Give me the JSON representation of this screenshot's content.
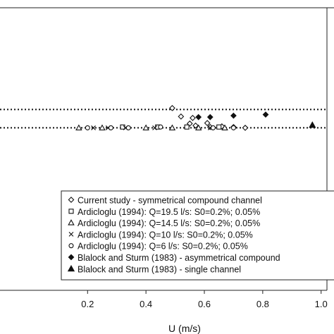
{
  "chart_data": {
    "type": "scatter",
    "xlabel": "U (m/s)",
    "ylabel": "",
    "title": "",
    "xlim": [
      -0.1,
      1.02
    ],
    "ylim": [
      0,
      1
    ],
    "x_ticks": [
      "0.2",
      "0.4",
      "0.6",
      "0.8",
      "1.0"
    ],
    "x_tick_values": [
      0.2,
      0.4,
      0.6,
      0.8,
      1.0
    ],
    "legend_position": "bottom-right",
    "reference_lines": [
      {
        "style": "dotted",
        "y": 0.64
      },
      {
        "style": "dotted",
        "y": 0.575
      }
    ],
    "series": [
      {
        "name": "Current study - symmetrical compound channel",
        "marker": "diamond-open",
        "points": [
          [
            0.49,
            0.645
          ],
          [
            0.52,
            0.615
          ],
          [
            0.56,
            0.61
          ],
          [
            0.55,
            0.59
          ],
          [
            0.57,
            0.583
          ],
          [
            0.61,
            0.592
          ],
          [
            0.62,
            0.578
          ],
          [
            0.66,
            0.58
          ],
          [
            0.7,
            0.578
          ],
          [
            0.74,
            0.575
          ]
        ]
      },
      {
        "name": "Ardicloglu (1994): Q=19.5 l/s: S0=0.2%; 0.05%",
        "marker": "square-open",
        "points": [
          [
            0.32,
            0.578
          ],
          [
            0.44,
            0.578
          ],
          [
            0.54,
            0.578
          ],
          [
            0.65,
            0.578
          ]
        ]
      },
      {
        "name": "Ardicloglu (1994): Q=14.5 l/s: S0=0.2%; 0.05%",
        "marker": "triangle-open",
        "points": [
          [
            0.17,
            0.575
          ],
          [
            0.25,
            0.575
          ],
          [
            0.4,
            0.575
          ],
          [
            0.49,
            0.575
          ],
          [
            0.58,
            0.575
          ],
          [
            0.67,
            0.575
          ]
        ]
      },
      {
        "name": "Ardicloglu (1994): Q=10 l/s: S0=0.2%; 0.05%",
        "marker": "x",
        "points": [
          [
            0.22,
            0.575
          ],
          [
            0.27,
            0.575
          ],
          [
            0.33,
            0.575
          ],
          [
            0.43,
            0.575
          ],
          [
            0.62,
            0.575
          ]
        ]
      },
      {
        "name": "Ardicloglu (1994): Q=6 l/s: S0=0.2%; 0.05%",
        "marker": "circle-open",
        "points": [
          [
            0.2,
            0.575
          ],
          [
            0.28,
            0.575
          ],
          [
            0.34,
            0.575
          ],
          [
            0.45,
            0.578
          ],
          [
            0.63,
            0.575
          ],
          [
            0.7,
            0.575
          ]
        ]
      },
      {
        "name": "Blalock and Sturm (1983) - asymmetrical compound",
        "marker": "diamond-filled",
        "points": [
          [
            0.58,
            0.613
          ],
          [
            0.62,
            0.613
          ],
          [
            0.7,
            0.618
          ],
          [
            0.81,
            0.622
          ]
        ]
      },
      {
        "name": "Blalock and Sturm (1983) - single channel",
        "marker": "triangle-filled",
        "points": [
          [
            0.97,
            0.585
          ]
        ]
      }
    ]
  }
}
